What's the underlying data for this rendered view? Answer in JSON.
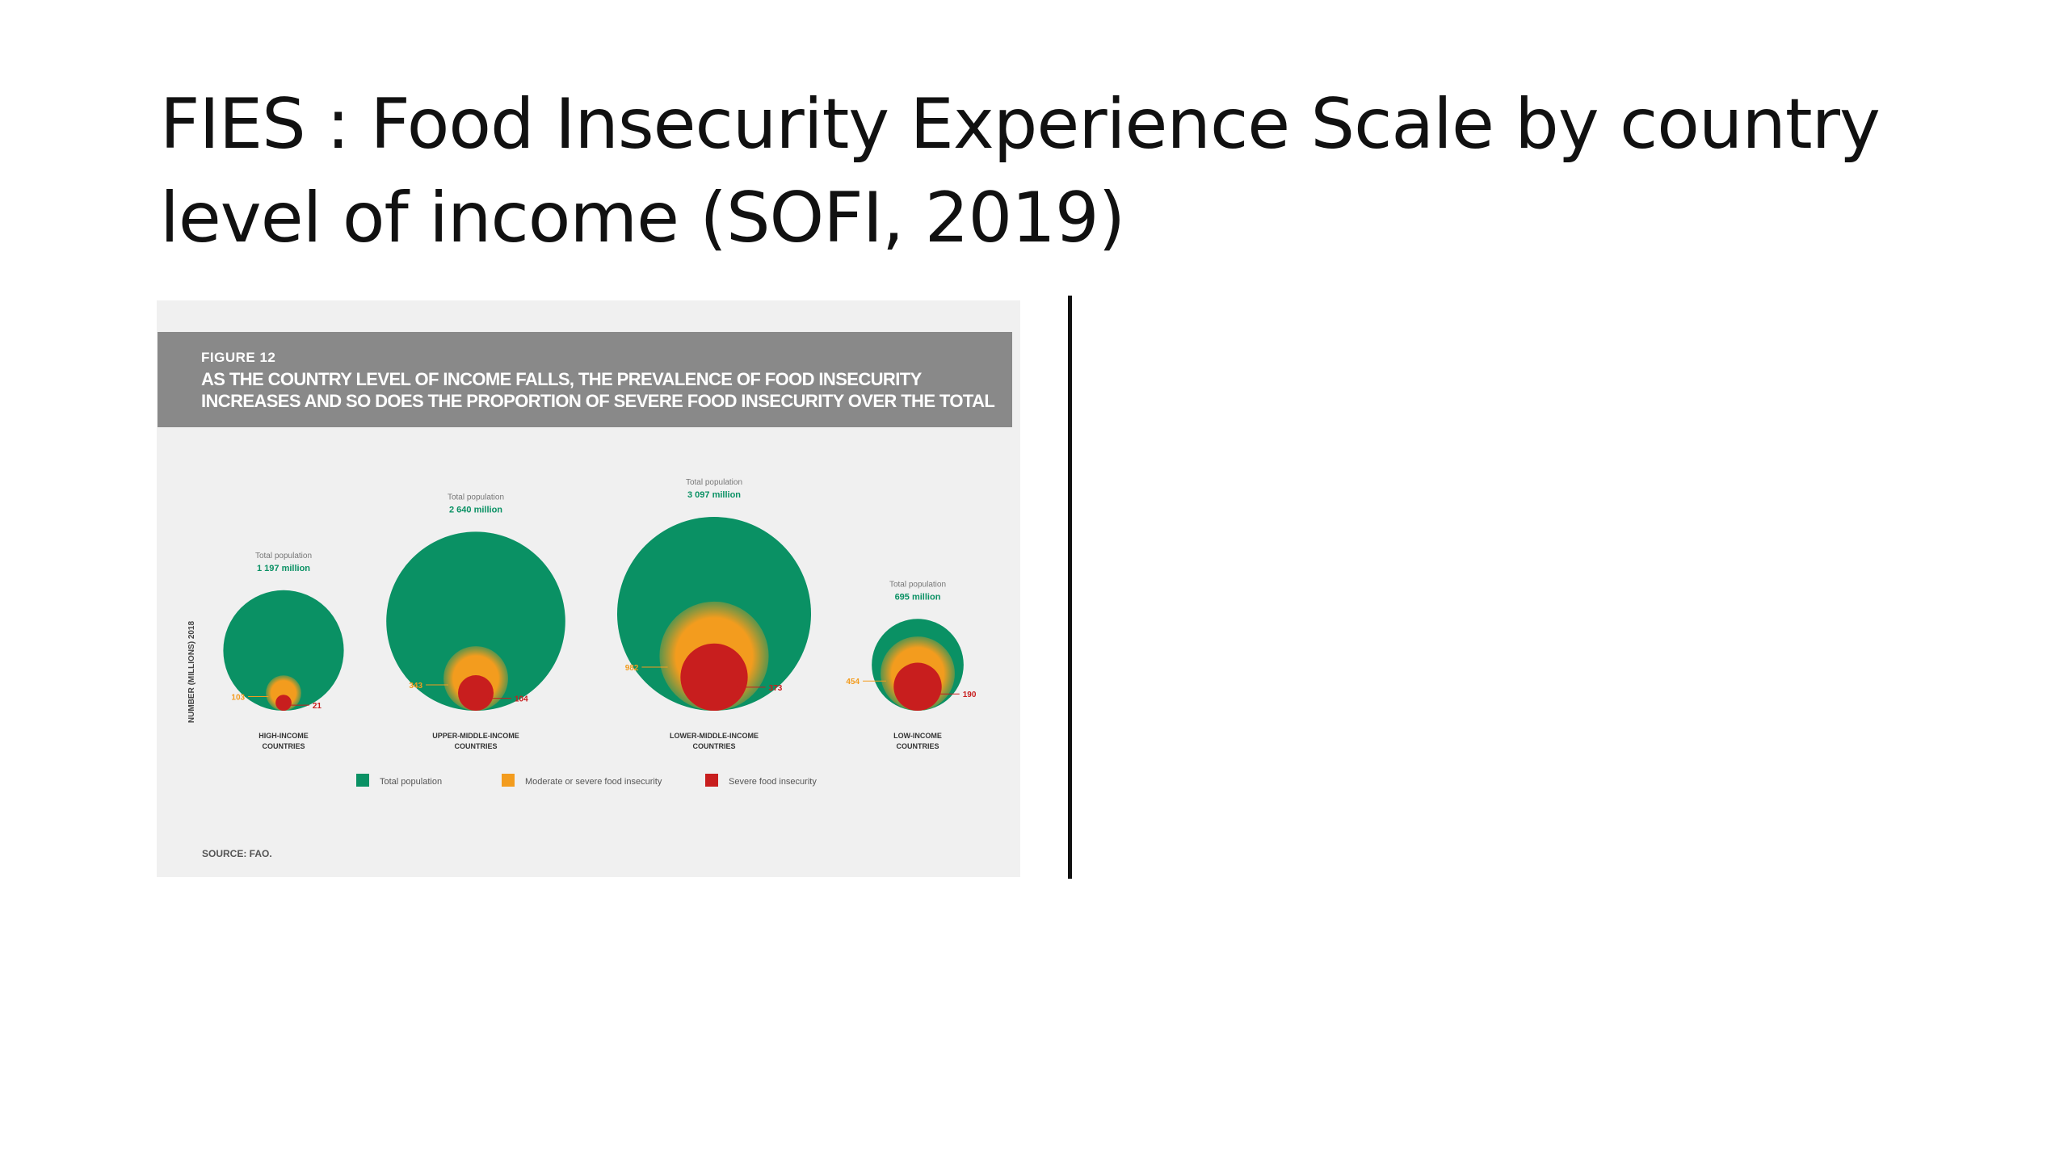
{
  "slide": {
    "title_line1": "FIES : Food Insecurity Experience Scale by country",
    "title_line2": "level of income (SOFI, 2019)"
  },
  "figure": {
    "number": "FIGURE 12",
    "caption_line1": "AS THE COUNTRY LEVEL OF INCOME FALLS, THE PREVALENCE OF FOOD INSECURITY",
    "caption_line2": "INCREASES AND SO DOES THE PROPORTION OF SEVERE FOOD INSECURITY OVER THE TOTAL",
    "source": "SOURCE: FAO."
  },
  "colors": {
    "total": "#0a9164",
    "moderate": "#f39c1e",
    "severe": "#c81e1e"
  },
  "chart_data": {
    "type": "bubble",
    "ylabel": "NUMBER (MILLIONS) 2018",
    "total_label": "Total population",
    "categories": [
      {
        "line1": "HIGH-INCOME",
        "line2": "COUNTRIES"
      },
      {
        "line1": "UPPER-MIDDLE-INCOME",
        "line2": "COUNTRIES"
      },
      {
        "line1": "LOWER-MIDDLE-INCOME",
        "line2": "COUNTRIES"
      },
      {
        "line1": "LOW-INCOME",
        "line2": "COUNTRIES"
      }
    ],
    "series": [
      {
        "name": "Total population",
        "values": [
          1197,
          2640,
          3097,
          695
        ],
        "labels": [
          "1 197 million",
          "2 640 million",
          "3 097 million",
          "695 million"
        ]
      },
      {
        "name": "Moderate or severe food insecurity",
        "values": [
          103,
          343,
          982,
          454
        ],
        "labels": [
          "103",
          "343",
          "982",
          "454"
        ]
      },
      {
        "name": "Severe food insecurity",
        "values": [
          21,
          104,
          373,
          190
        ],
        "labels": [
          "21",
          "104",
          "373",
          "190"
        ]
      }
    ]
  }
}
